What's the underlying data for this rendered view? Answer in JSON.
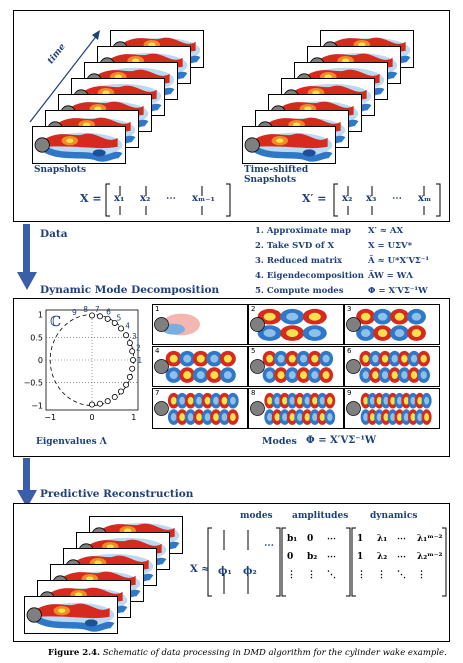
{
  "top_panel": {
    "time_label": "time",
    "snapshots_label": "Snapshots",
    "time_shifted_label_line1": "Time-shifted",
    "time_shifted_label_line2": "Snapshots",
    "X_def": {
      "lhs": "X =",
      "cols": [
        "x₁",
        "x₂",
        "⋯",
        "xₘ₋₁"
      ]
    },
    "Xp_def": {
      "lhs": "X′ =",
      "cols": [
        "x₂",
        "x₃",
        "⋯",
        "xₘ"
      ]
    }
  },
  "data_section": {
    "label": "Data",
    "steps": [
      {
        "text": "1. Approximate map",
        "eq": "X′ ≈ AX"
      },
      {
        "text": "2. Take SVD of X",
        "eq": "X = UΣV*"
      },
      {
        "text": "3. Reduced matrix",
        "eq": "Ã ≈ U*X′VΣ⁻¹"
      },
      {
        "text": "4. Eigendecomposition",
        "eq": "ÃW = WΛ"
      },
      {
        "text": "5. Compute modes",
        "eq": "Φ = X′VΣ⁻¹W"
      }
    ]
  },
  "dmd_section": {
    "title": "Dynamic Mode Decomposition",
    "complex_symbol": "ℂ",
    "eig_plot": {
      "y_ticks": [
        "1",
        "0.5",
        "0",
        "−0.5",
        "−1"
      ],
      "x_ticks": [
        "−1",
        "0",
        "1"
      ],
      "top_labels": [
        "9",
        "8",
        "7",
        "6",
        "5",
        "4",
        "3",
        "2",
        "1"
      ],
      "label": "Eigenvalues Λ"
    },
    "modes_label": "Modes",
    "modes_eq": "Φ = X′VΣ⁻¹W",
    "mode_numbers": [
      "1",
      "2",
      "3",
      "4",
      "5",
      "6",
      "7",
      "8",
      "9"
    ]
  },
  "reconstruction_section": {
    "title": "Predictive Reconstruction",
    "lhs": "X ≈",
    "modes_header": "modes",
    "amplitudes_header": "amplitudes",
    "dynamics_header": "dynamics",
    "modes_row": [
      "ϕ₁",
      "ϕ₂",
      "⋯"
    ],
    "amp_rows": [
      [
        "b₁",
        "0",
        "⋯"
      ],
      [
        "0",
        "b₂",
        "⋯"
      ],
      [
        "⋮",
        "⋮",
        "⋱"
      ]
    ],
    "dyn_rows": [
      [
        "1",
        "λ₁",
        "⋯",
        "λ₁ᵐ⁻²"
      ],
      [
        "1",
        "λ₂",
        "⋯",
        "λ₂ᵐ⁻²"
      ],
      [
        "⋮",
        "⋮",
        "⋱",
        "⋮"
      ]
    ]
  },
  "caption": {
    "bold": "Figure 2.4.",
    "italic": "Schematic of data processing in DMD algorithm for the cylinder wake example."
  },
  "colors": {
    "text_blue": "#1f3f7a",
    "arrow_blue": "#3a5fa8",
    "wake_red": "#d62a1e",
    "wake_orange": "#f08a24",
    "wake_yellow": "#f6e24a",
    "wake_blue": "#2f78c8",
    "wake_lightblue": "#8fc0ea",
    "cylinder_gray": "#7f7f7f"
  }
}
